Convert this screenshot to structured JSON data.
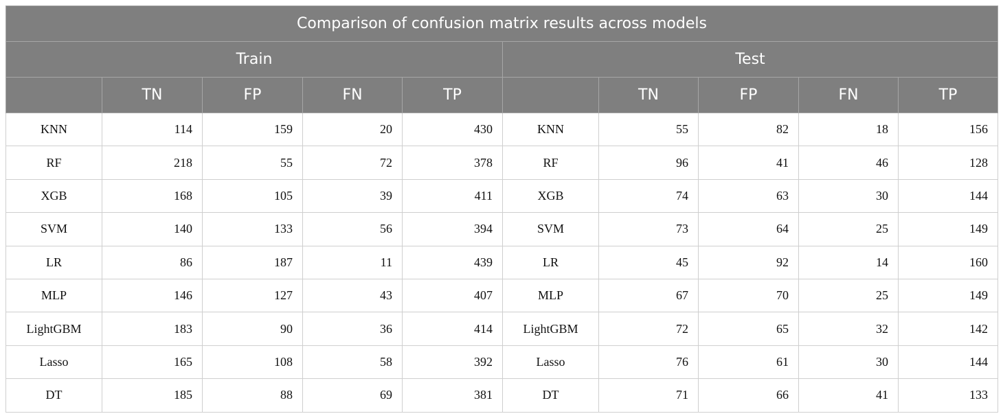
{
  "table": {
    "title": "Comparison of confusion matrix results across models",
    "groups": [
      "Train",
      "Test"
    ],
    "header": {
      "train": [
        "TN",
        "FP",
        "FN",
        "TP"
      ],
      "test": [
        "TN",
        "FP",
        "FN",
        "TP"
      ]
    },
    "rows": [
      {
        "train": [
          "KNN",
          114,
          159,
          20,
          430
        ],
        "test": [
          "KNN",
          55,
          82,
          18,
          156
        ]
      },
      {
        "train": [
          "RF",
          218,
          55,
          72,
          378
        ],
        "test": [
          "RF",
          96,
          41,
          46,
          128
        ]
      },
      {
        "train": [
          "XGB",
          168,
          105,
          39,
          411
        ],
        "test": [
          "XGB",
          74,
          63,
          30,
          144
        ]
      },
      {
        "train": [
          "SVM",
          140,
          133,
          56,
          394
        ],
        "test": [
          "SVM",
          73,
          64,
          25,
          149
        ]
      },
      {
        "train": [
          "LR",
          86,
          187,
          11,
          439
        ],
        "test": [
          "LR",
          45,
          92,
          14,
          160
        ]
      },
      {
        "train": [
          "MLP",
          146,
          127,
          43,
          407
        ],
        "test": [
          "MLP",
          67,
          70,
          25,
          149
        ]
      },
      {
        "train": [
          "LightGBM",
          183,
          90,
          36,
          414
        ],
        "test": [
          "LightGBM",
          72,
          65,
          32,
          142
        ]
      },
      {
        "train": [
          "Lasso",
          165,
          108,
          58,
          392
        ],
        "test": [
          "Lasso",
          76,
          61,
          30,
          144
        ]
      },
      {
        "train": [
          "DT",
          185,
          88,
          69,
          381
        ],
        "test": [
          "DT",
          71,
          66,
          41,
          133
        ]
      }
    ]
  }
}
